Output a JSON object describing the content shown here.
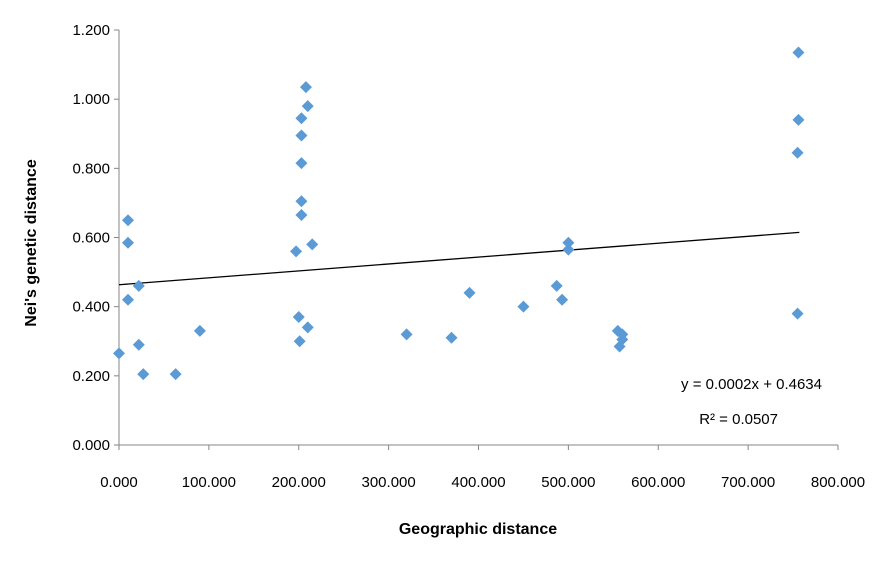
{
  "chart_data": {
    "type": "scatter",
    "title": "",
    "xlabel": "Geographic distance",
    "ylabel": "Nei's genetic distance",
    "xlim": [
      0,
      800
    ],
    "ylim": [
      0,
      1.2
    ],
    "x_ticks": [
      0,
      100,
      200,
      300,
      400,
      500,
      600,
      700,
      800
    ],
    "x_tick_labels": [
      "0.000",
      "100.000",
      "200.000",
      "300.000",
      "400.000",
      "500.000",
      "600.000",
      "700.000",
      "800.000"
    ],
    "y_ticks": [
      0,
      0.2,
      0.4,
      0.6,
      0.8,
      1.0,
      1.2
    ],
    "y_tick_labels": [
      "0.000",
      "0.200",
      "0.400",
      "0.600",
      "0.800",
      "1.000",
      "1.200"
    ],
    "grid": false,
    "legend": "none",
    "marker": "diamond",
    "marker_color": "#5b9bd5",
    "points": [
      {
        "x": 0,
        "y": 0.265
      },
      {
        "x": 10,
        "y": 0.65
      },
      {
        "x": 10,
        "y": 0.585
      },
      {
        "x": 10,
        "y": 0.42
      },
      {
        "x": 22,
        "y": 0.46
      },
      {
        "x": 22,
        "y": 0.29
      },
      {
        "x": 27,
        "y": 0.205
      },
      {
        "x": 63,
        "y": 0.205
      },
      {
        "x": 90,
        "y": 0.33
      },
      {
        "x": 197,
        "y": 0.56
      },
      {
        "x": 200,
        "y": 0.37
      },
      {
        "x": 201,
        "y": 0.3
      },
      {
        "x": 203,
        "y": 0.945
      },
      {
        "x": 203,
        "y": 0.895
      },
      {
        "x": 203,
        "y": 0.815
      },
      {
        "x": 203,
        "y": 0.705
      },
      {
        "x": 203,
        "y": 0.665
      },
      {
        "x": 208,
        "y": 1.035
      },
      {
        "x": 210,
        "y": 0.98
      },
      {
        "x": 210,
        "y": 0.34
      },
      {
        "x": 215,
        "y": 0.58
      },
      {
        "x": 320,
        "y": 0.32
      },
      {
        "x": 370,
        "y": 0.31
      },
      {
        "x": 390,
        "y": 0.44
      },
      {
        "x": 450,
        "y": 0.4
      },
      {
        "x": 487,
        "y": 0.46
      },
      {
        "x": 493,
        "y": 0.42
      },
      {
        "x": 500,
        "y": 0.585
      },
      {
        "x": 500,
        "y": 0.565
      },
      {
        "x": 555,
        "y": 0.33
      },
      {
        "x": 557,
        "y": 0.285
      },
      {
        "x": 560,
        "y": 0.32
      },
      {
        "x": 560,
        "y": 0.305
      },
      {
        "x": 756,
        "y": 1.135
      },
      {
        "x": 756,
        "y": 0.94
      },
      {
        "x": 755,
        "y": 0.845
      },
      {
        "x": 755,
        "y": 0.38
      }
    ],
    "trendline": {
      "type": "linear",
      "slope": 0.0002,
      "intercept": 0.4634,
      "x_range": [
        0,
        757
      ],
      "color": "#000000"
    },
    "annotations": {
      "equation": "y = 0.0002x + 0.4634",
      "r_squared": "R² = 0.0507"
    }
  }
}
